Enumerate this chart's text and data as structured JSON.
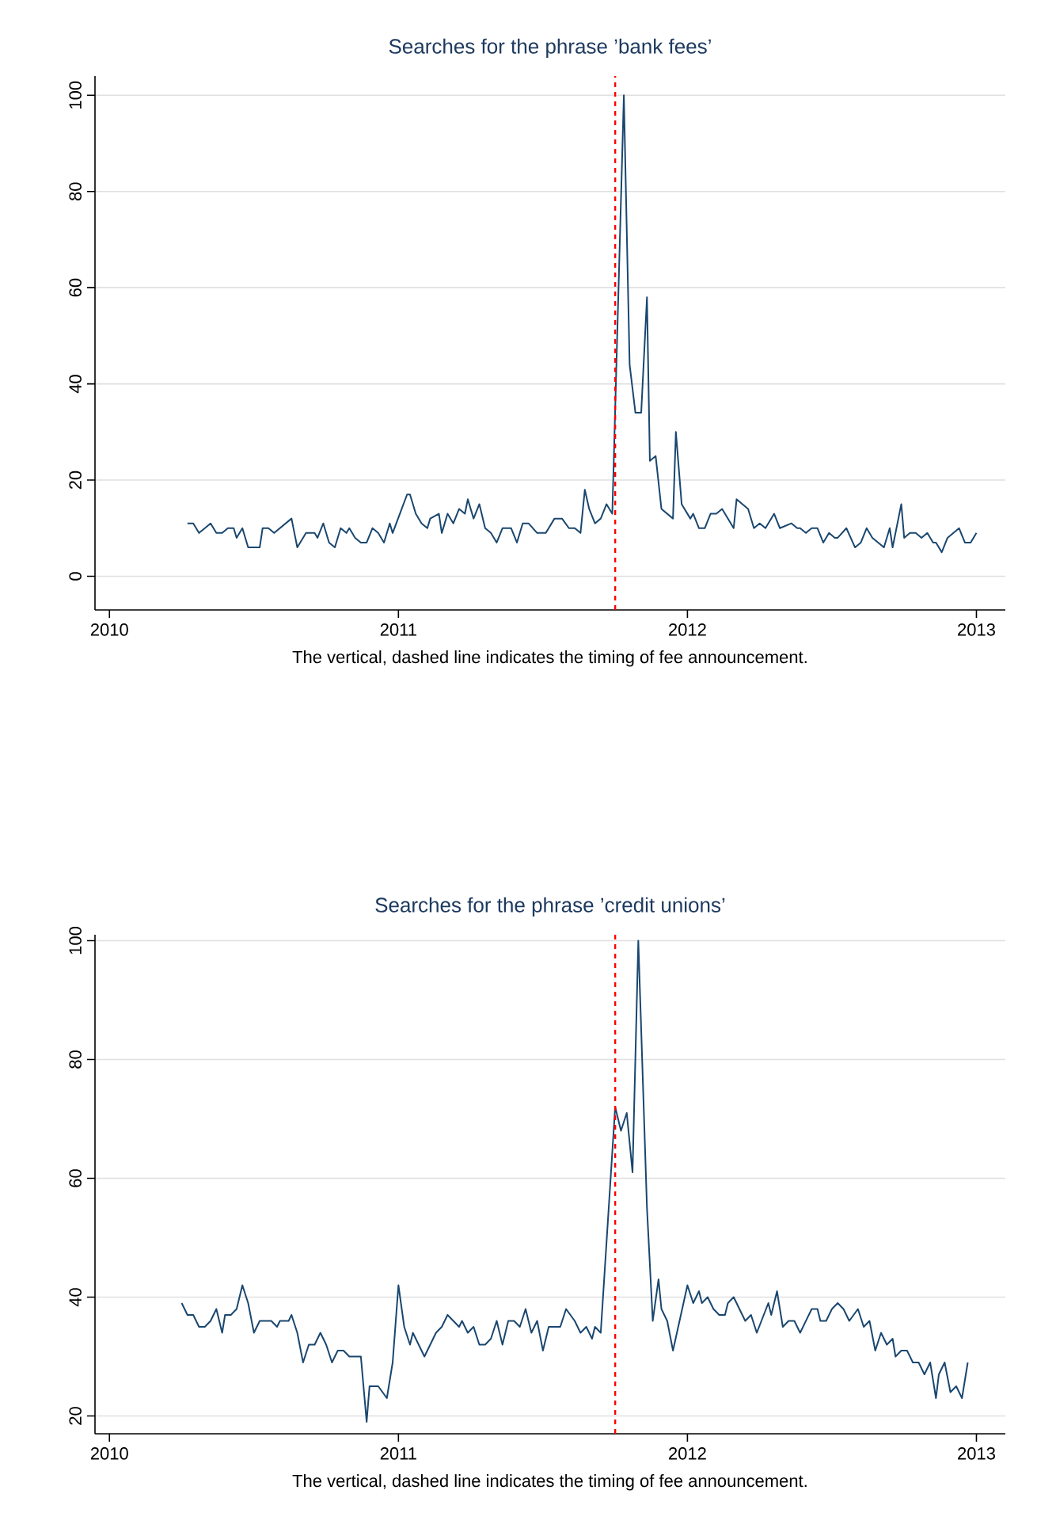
{
  "chart_data": [
    {
      "type": "line",
      "title": "Searches for the phrase ’bank fees’",
      "annotations": [
        "The vertical, dashed line indicates the timing of fee announcement."
      ],
      "x": [
        2010.27,
        2010.29,
        2010.31,
        2010.35,
        2010.37,
        2010.39,
        2010.41,
        2010.43,
        2010.44,
        2010.46,
        2010.48,
        2010.52,
        2010.53,
        2010.55,
        2010.57,
        2010.63,
        2010.65,
        2010.67,
        2010.68,
        2010.71,
        2010.72,
        2010.74,
        2010.76,
        2010.78,
        2010.8,
        2010.82,
        2010.83,
        2010.85,
        2010.87,
        2010.89,
        2010.91,
        2010.93,
        2010.95,
        2010.97,
        2010.98,
        2011.03,
        2011.04,
        2011.06,
        2011.08,
        2011.1,
        2011.11,
        2011.14,
        2011.15,
        2011.17,
        2011.19,
        2011.21,
        2011.23,
        2011.24,
        2011.26,
        2011.28,
        2011.3,
        2011.32,
        2011.34,
        2011.36,
        2011.39,
        2011.41,
        2011.43,
        2011.45,
        2011.48,
        2011.51,
        2011.54,
        2011.566,
        2011.59,
        2011.61,
        2011.63,
        2011.645,
        2011.66,
        2011.68,
        2011.7,
        2011.72,
        2011.74,
        2011.78,
        2011.8,
        2011.82,
        2011.84,
        2011.86,
        2011.87,
        2011.89,
        2011.91,
        2011.95,
        2011.96,
        2011.98,
        2012.01,
        2012.02,
        2012.04,
        2012.06,
        2012.08,
        2012.1,
        2012.12,
        2012.16,
        2012.17,
        2012.21,
        2012.23,
        2012.25,
        2012.27,
        2012.3,
        2012.32,
        2012.36,
        2012.38,
        2012.39,
        2012.41,
        2012.43,
        2012.45,
        2012.47,
        2012.49,
        2012.51,
        2012.52,
        2012.55,
        2012.58,
        2012.6,
        2012.62,
        2012.64,
        2012.68,
        2012.7,
        2012.71,
        2012.74,
        2012.75,
        2012.77,
        2012.79,
        2012.81,
        2012.83,
        2012.85,
        2012.86,
        2012.88,
        2012.9,
        2012.94,
        2012.96,
        2012.98,
        2013.0
      ],
      "series": [
        {
          "color": "#1a476f",
          "values": [
            11,
            11,
            9,
            11,
            9,
            9,
            10,
            10,
            8,
            10,
            6,
            6,
            10,
            10,
            9,
            12,
            6,
            8,
            9,
            9,
            8,
            11,
            7,
            6,
            10,
            9,
            10,
            8,
            7,
            7,
            10,
            9,
            7,
            11,
            9,
            17,
            17,
            13,
            11,
            10,
            12,
            13,
            9,
            13,
            11,
            14,
            13,
            16,
            12,
            15,
            10,
            9,
            7,
            10,
            10,
            7,
            11,
            11,
            9,
            9,
            12,
            12,
            10,
            10,
            9,
            18,
            14,
            11,
            12,
            15,
            13,
            100,
            44,
            34,
            34,
            58,
            24,
            25,
            14,
            12,
            30,
            15,
            12,
            13,
            10,
            10,
            13,
            13,
            14,
            10,
            16,
            14,
            10,
            11,
            10,
            13,
            10,
            11,
            10,
            10,
            9,
            10,
            10,
            7,
            9,
            8,
            8,
            10,
            6,
            7,
            10,
            8,
            6,
            10,
            6,
            15,
            8,
            9,
            9,
            8,
            9,
            7,
            7,
            5,
            8,
            10,
            7,
            7,
            9
          ]
        }
      ],
      "xlim": [
        2009.95,
        2013.1
      ],
      "xticks": [
        2010,
        2011,
        2012,
        2013
      ],
      "ylim": [
        -7,
        104
      ],
      "yticks": [
        0,
        20,
        40,
        60,
        80,
        100
      ],
      "grid": "y",
      "ref_lines": [
        {
          "axis": "x",
          "value": 2011.75,
          "color": "#ff0000",
          "line_style": "dashed"
        }
      ]
    },
    {
      "type": "line",
      "title": "Searches for the phrase ’credit unions’",
      "annotations": [
        "The vertical, dashed line indicates the timing of fee announcement."
      ],
      "x": [
        2010.25,
        2010.27,
        2010.29,
        2010.31,
        2010.33,
        2010.35,
        2010.37,
        2010.39,
        2010.4,
        2010.42,
        2010.44,
        2010.46,
        2010.48,
        2010.5,
        2010.52,
        2010.56,
        2010.58,
        2010.59,
        2010.62,
        2010.63,
        2010.65,
        2010.67,
        2010.69,
        2010.71,
        2010.73,
        2010.75,
        2010.77,
        2010.79,
        2010.81,
        2010.83,
        2010.87,
        2010.89,
        2010.9,
        2010.93,
        2010.96,
        2010.98,
        2011.0,
        2011.02,
        2011.04,
        2011.05,
        2011.09,
        2011.13,
        2011.15,
        2011.17,
        2011.19,
        2011.21,
        2011.22,
        2011.24,
        2011.26,
        2011.28,
        2011.3,
        2011.32,
        2011.34,
        2011.36,
        2011.38,
        2011.4,
        2011.42,
        2011.44,
        2011.46,
        2011.48,
        2011.5,
        2011.52,
        2011.56,
        2011.58,
        2011.61,
        2011.63,
        2011.65,
        2011.67,
        2011.68,
        2011.7,
        2011.75,
        2011.77,
        2011.79,
        2011.81,
        2011.83,
        2011.86,
        2011.88,
        2011.9,
        2011.91,
        2011.93,
        2011.95,
        2012.0,
        2012.02,
        2012.04,
        2012.05,
        2012.07,
        2012.09,
        2012.11,
        2012.13,
        2012.14,
        2012.16,
        2012.2,
        2012.22,
        2012.24,
        2012.28,
        2012.29,
        2012.31,
        2012.33,
        2012.35,
        2012.37,
        2012.39,
        2012.43,
        2012.45,
        2012.46,
        2012.48,
        2012.5,
        2012.52,
        2012.54,
        2012.56,
        2012.59,
        2012.61,
        2012.63,
        2012.65,
        2012.67,
        2012.69,
        2012.71,
        2012.72,
        2012.74,
        2012.76,
        2012.78,
        2012.8,
        2012.82,
        2012.84,
        2012.86,
        2012.87,
        2012.89,
        2012.91,
        2012.93,
        2012.95,
        2012.97
      ],
      "series": [
        {
          "color": "#1a476f",
          "values": [
            39,
            37,
            37,
            35,
            35,
            36,
            38,
            34,
            37,
            37,
            38,
            42,
            39,
            34,
            36,
            36,
            35,
            36,
            36,
            37,
            34,
            29,
            32,
            32,
            34,
            32,
            29,
            31,
            31,
            30,
            30,
            19,
            25,
            25,
            23,
            29,
            42,
            35,
            32,
            34,
            30,
            34,
            35,
            37,
            36,
            35,
            36,
            34,
            35,
            32,
            32,
            33,
            36,
            32,
            36,
            36,
            35,
            38,
            34,
            36,
            31,
            35,
            35,
            38,
            36,
            34,
            35,
            33,
            35,
            34,
            72,
            68,
            71,
            61,
            100,
            55,
            36,
            43,
            38,
            36,
            31,
            42,
            39,
            41,
            39,
            40,
            38,
            37,
            37,
            39,
            40,
            36,
            37,
            34,
            39,
            37,
            41,
            35,
            36,
            36,
            34,
            38,
            38,
            36,
            36,
            38,
            39,
            38,
            36,
            38,
            35,
            36,
            31,
            34,
            32,
            33,
            30,
            31,
            31,
            29,
            29,
            27,
            29,
            23,
            27,
            29,
            24,
            25,
            23,
            29
          ]
        }
      ],
      "xlim": [
        2009.95,
        2013.1
      ],
      "xticks": [
        2010,
        2011,
        2012,
        2013
      ],
      "ylim": [
        17,
        101
      ],
      "yticks": [
        20,
        40,
        60,
        80,
        100
      ],
      "grid": "y",
      "ref_lines": [
        {
          "axis": "x",
          "value": 2011.75,
          "color": "#ff0000",
          "line_style": "dashed"
        }
      ]
    }
  ]
}
